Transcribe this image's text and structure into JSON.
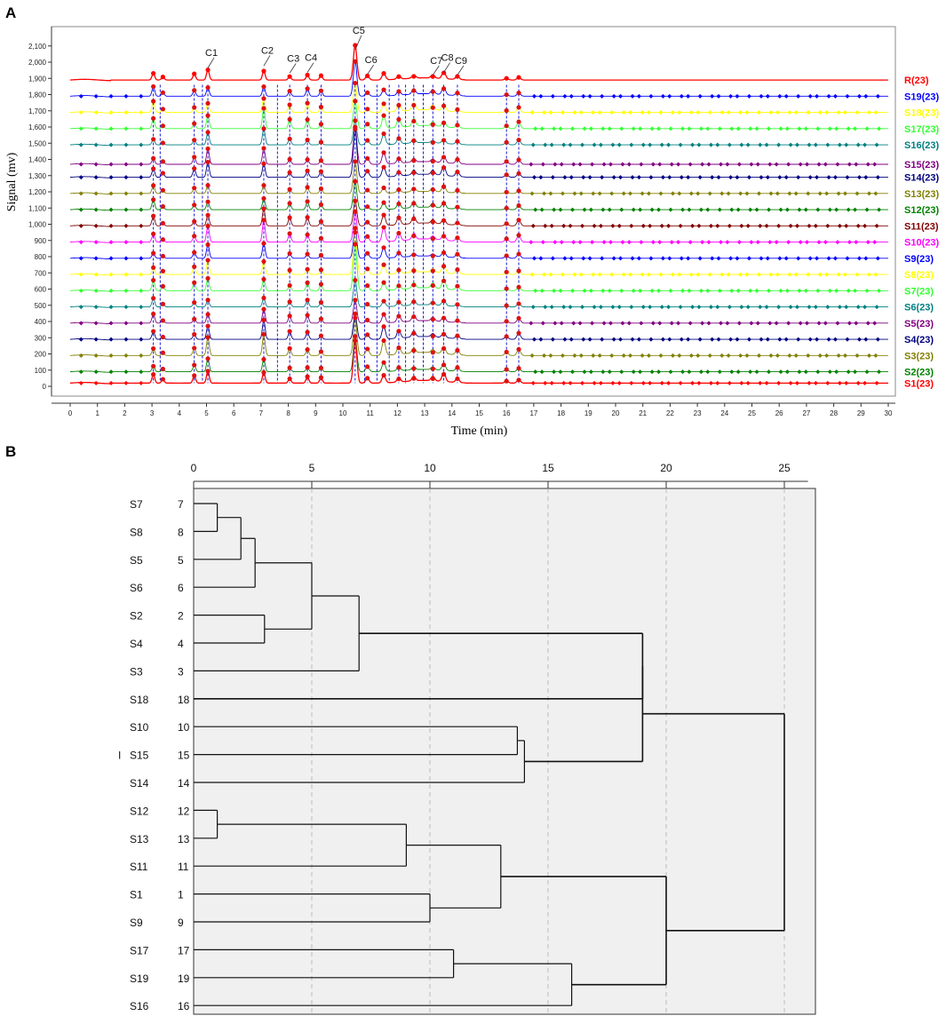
{
  "panels": {
    "a_label": "A",
    "b_label": "B"
  },
  "chart_data": [
    {
      "type": "line",
      "title": "",
      "xlabel": "Time (min)",
      "ylabel": "Signal (mv)",
      "xlim": [
        0,
        30
      ],
      "ylim": [
        0,
        2200
      ],
      "x_ticks": [
        "0",
        "1",
        "2",
        "3",
        "4",
        "5",
        "6",
        "7",
        "8",
        "9",
        "10",
        "11",
        "12",
        "13",
        "14",
        "15",
        "16",
        "17",
        "18",
        "19",
        "20",
        "21",
        "22",
        "23",
        "24",
        "25",
        "26",
        "27",
        "28",
        "29",
        "30"
      ],
      "y_ticks": [
        "0",
        "100",
        "200",
        "300",
        "400",
        "500",
        "600",
        "700",
        "800",
        "900",
        "1,000",
        "1,100",
        "1,200",
        "1,300",
        "1,400",
        "1,500",
        "1,600",
        "1,700",
        "1,800",
        "1,900",
        "2,000",
        "2,100"
      ],
      "series": [
        {
          "name": "R(23)",
          "color": "#ff0000",
          "baseline": 1890
        },
        {
          "name": "S19(23)",
          "color": "#0000ff",
          "baseline": 1790
        },
        {
          "name": "S18(23)",
          "color": "#ffff00",
          "baseline": 1690
        },
        {
          "name": "S17(23)",
          "color": "#33ff33",
          "baseline": 1590
        },
        {
          "name": "S16(23)",
          "color": "#008080",
          "baseline": 1490
        },
        {
          "name": "S15(23)",
          "color": "#800080",
          "baseline": 1370
        },
        {
          "name": "S14(23)",
          "color": "#000080",
          "baseline": 1290
        },
        {
          "name": "S13(23)",
          "color": "#808000",
          "baseline": 1190
        },
        {
          "name": "S12(23)",
          "color": "#008000",
          "baseline": 1090
        },
        {
          "name": "S11(23)",
          "color": "#800000",
          "baseline": 990
        },
        {
          "name": "S10(23)",
          "color": "#ff00ff",
          "baseline": 890
        },
        {
          "name": "S9(23)",
          "color": "#0000ff",
          "baseline": 790
        },
        {
          "name": "S8(23)",
          "color": "#ffff00",
          "baseline": 690
        },
        {
          "name": "S7(23)",
          "color": "#33ff33",
          "baseline": 590
        },
        {
          "name": "S6(23)",
          "color": "#008080",
          "baseline": 490
        },
        {
          "name": "S5(23)",
          "color": "#800080",
          "baseline": 390
        },
        {
          "name": "S4(23)",
          "color": "#000080",
          "baseline": 290
        },
        {
          "name": "S3(23)",
          "color": "#808000",
          "baseline": 190
        },
        {
          "name": "S2(23)",
          "color": "#008000",
          "baseline": 90
        },
        {
          "name": "S1(23)",
          "color": "#ff0000",
          "baseline": 20
        }
      ],
      "peaks": [
        {
          "time": 3.05,
          "height": 55
        },
        {
          "time": 3.4,
          "height": 20
        },
        {
          "time": 4.55,
          "height": 40
        },
        {
          "time": 5.05,
          "height": 80,
          "label": "C1"
        },
        {
          "time": 7.1,
          "height": 95,
          "label": "C2"
        },
        {
          "time": 8.05,
          "height": 40,
          "label": "C3"
        },
        {
          "time": 8.7,
          "height": 45,
          "label": "C4"
        },
        {
          "time": 9.2,
          "height": 30
        },
        {
          "time": 10.45,
          "height": 220,
          "label": "C5"
        },
        {
          "time": 10.9,
          "height": 30,
          "label": "C6"
        },
        {
          "time": 11.5,
          "height": 65
        },
        {
          "time": 12.05,
          "height": 40
        },
        {
          "time": 12.6,
          "height": 35
        },
        {
          "time": 13.3,
          "height": 25,
          "label": "C7"
        },
        {
          "time": 13.7,
          "height": 45,
          "label": "C8"
        },
        {
          "time": 14.2,
          "height": 25,
          "label": "C9"
        },
        {
          "time": 16.0,
          "height": 15
        },
        {
          "time": 16.45,
          "height": 30
        }
      ],
      "marker_lines": [
        3.05,
        3.3,
        4.55,
        4.85,
        5.05,
        7.1,
        7.6,
        8.05,
        8.7,
        9.2,
        10.45,
        10.8,
        11.25,
        11.7,
        12.05,
        12.3,
        12.6,
        12.95,
        13.3,
        13.7,
        14.2,
        16.0,
        16.45
      ]
    },
    {
      "type": "dendrogram",
      "title": "",
      "x_ticks": [
        "0",
        "5",
        "10",
        "15",
        "20",
        "25"
      ],
      "xlim": [
        0,
        26
      ],
      "samples": [
        "S7",
        "S8",
        "S5",
        "S6",
        "S2",
        "S4",
        "S3",
        "S18",
        "S10",
        "S15",
        "S14",
        "S12",
        "S13",
        "S11",
        "S1",
        "S9",
        "S17",
        "S19",
        "S16"
      ],
      "case_numbers": [
        "7",
        "8",
        "5",
        "6",
        "2",
        "4",
        "3",
        "18",
        "10",
        "15",
        "14",
        "12",
        "13",
        "11",
        "1",
        "9",
        "17",
        "19",
        "16"
      ],
      "side_mark": "I",
      "merges": [
        {
          "a": 0,
          "b": 1,
          "d": 1.0
        },
        {
          "a": "m0",
          "b": 2,
          "d": 2.0
        },
        {
          "a": "m1",
          "b": 3,
          "d": 2.6
        },
        {
          "a": 4,
          "b": 5,
          "d": 3.0
        },
        {
          "a": "m2",
          "b": "m3",
          "d": 5.0
        },
        {
          "a": "m4",
          "b": 6,
          "d": 7.0
        },
        {
          "a": "m5",
          "b": 7,
          "d": 19.0
        },
        {
          "a": 8,
          "b": 9,
          "d": 13.7
        },
        {
          "a": "m7",
          "b": 10,
          "d": 14.0
        },
        {
          "a": "m6",
          "b": "m8",
          "d": 19.0
        },
        {
          "a": 11,
          "b": 12,
          "d": 1.0
        },
        {
          "a": "m10",
          "b": 13,
          "d": 9.0
        },
        {
          "a": 14,
          "b": 15,
          "d": 10.0
        },
        {
          "a": "m11",
          "b": "m12",
          "d": 13.0
        },
        {
          "a": 16,
          "b": 17,
          "d": 11.0
        },
        {
          "a": "m14",
          "b": 18,
          "d": 16.0
        },
        {
          "a": "m13",
          "b": "m15",
          "d": 20.0
        },
        {
          "a": "m9",
          "b": "m16",
          "d": 25.0
        }
      ]
    }
  ]
}
